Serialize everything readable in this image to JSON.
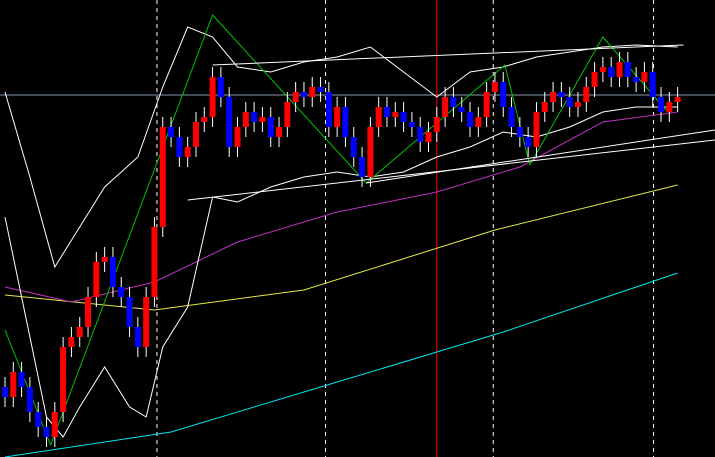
{
  "chart_data": {
    "type": "candlestick",
    "xlim": [
      -0.6,
      85.5
    ],
    "ylim": [
      0,
      457
    ],
    "background": "#000000",
    "up_color": "#ff0000",
    "down_color": "#0000ff",
    "wick_color": "#ffffff",
    "open": [
      70,
      60,
      85,
      70,
      45,
      30,
      20,
      45,
      110,
      120,
      130,
      160,
      195,
      200,
      170,
      160,
      130,
      110,
      160,
      230,
      330,
      320,
      300,
      310,
      335,
      340,
      380,
      360,
      310,
      330,
      345,
      335,
      340,
      320,
      330,
      355,
      365,
      360,
      370,
      365,
      330,
      350,
      320,
      300,
      280,
      330,
      350,
      340,
      345,
      335,
      330,
      315,
      325,
      340,
      360,
      350,
      345,
      330,
      340,
      365,
      375,
      350,
      330,
      320,
      310,
      345,
      355,
      365,
      360,
      350,
      355,
      370,
      385,
      390,
      380,
      395,
      380,
      375,
      385,
      360,
      345,
      355
    ],
    "high": [
      80,
      95,
      95,
      80,
      55,
      40,
      55,
      120,
      130,
      140,
      170,
      205,
      210,
      210,
      180,
      170,
      140,
      170,
      240,
      340,
      340,
      330,
      320,
      345,
      350,
      390,
      390,
      370,
      340,
      355,
      355,
      350,
      350,
      340,
      365,
      375,
      375,
      380,
      380,
      375,
      360,
      360,
      330,
      310,
      340,
      360,
      360,
      355,
      355,
      345,
      340,
      335,
      350,
      370,
      370,
      360,
      355,
      350,
      375,
      385,
      385,
      360,
      340,
      330,
      355,
      365,
      375,
      375,
      370,
      365,
      380,
      395,
      400,
      400,
      405,
      405,
      390,
      395,
      395,
      370,
      365,
      370
    ],
    "low": [
      50,
      50,
      60,
      35,
      20,
      10,
      10,
      35,
      100,
      110,
      120,
      150,
      185,
      160,
      150,
      120,
      100,
      100,
      150,
      220,
      310,
      290,
      290,
      300,
      325,
      330,
      350,
      300,
      300,
      320,
      325,
      325,
      310,
      310,
      320,
      345,
      350,
      350,
      355,
      320,
      320,
      310,
      290,
      270,
      270,
      320,
      330,
      330,
      325,
      320,
      305,
      305,
      315,
      330,
      340,
      335,
      320,
      320,
      330,
      355,
      340,
      320,
      310,
      300,
      300,
      335,
      345,
      350,
      340,
      340,
      345,
      360,
      375,
      370,
      370,
      370,
      365,
      365,
      350,
      335,
      335,
      345
    ],
    "close": [
      60,
      85,
      70,
      45,
      30,
      20,
      45,
      110,
      120,
      130,
      160,
      195,
      200,
      170,
      160,
      130,
      110,
      160,
      230,
      330,
      320,
      300,
      310,
      335,
      340,
      380,
      360,
      310,
      330,
      345,
      335,
      340,
      320,
      330,
      355,
      365,
      360,
      370,
      365,
      330,
      350,
      320,
      300,
      280,
      330,
      350,
      340,
      345,
      335,
      330,
      315,
      325,
      340,
      360,
      350,
      345,
      330,
      340,
      365,
      375,
      350,
      330,
      320,
      310,
      345,
      355,
      365,
      360,
      350,
      355,
      370,
      385,
      390,
      380,
      395,
      380,
      375,
      385,
      360,
      345,
      355,
      360
    ],
    "lines": [
      {
        "color": "#00e5ee",
        "x": [
          0,
          20,
          40,
          60,
          81
        ],
        "values": [
          0,
          25,
          75,
          125,
          184
        ]
      },
      {
        "color": "#e8e84a",
        "x": [
          0,
          18,
          36,
          59,
          81
        ],
        "values": [
          162,
          147,
          167,
          227,
          272
        ]
      },
      {
        "color": "#c030c0",
        "x": [
          0,
          8,
          18,
          28,
          40,
          52,
          62,
          72,
          81
        ],
        "values": [
          170,
          155,
          175,
          215,
          245,
          265,
          290,
          335,
          345
        ]
      },
      {
        "color": "#ffffff",
        "x": [
          0,
          3,
          6,
          9,
          12,
          16,
          19,
          22,
          25,
          28,
          32,
          36,
          40,
          44,
          48,
          52,
          56,
          60,
          64,
          68,
          72,
          76,
          81
        ],
        "values": [
          365,
          280,
          190,
          230,
          270,
          300,
          370,
          430,
          420,
          390,
          385,
          395,
          400,
          410,
          385,
          360,
          385,
          390,
          400,
          405,
          410,
          412,
          410
        ]
      },
      {
        "color": "#ffffff",
        "x": [
          0,
          3,
          5,
          7,
          9,
          12,
          15,
          17,
          19,
          22,
          25,
          28,
          32,
          36,
          40,
          44,
          48,
          52,
          56,
          60,
          64,
          68,
          72,
          76,
          81
        ],
        "values": [
          240,
          120,
          40,
          20,
          50,
          90,
          50,
          40,
          110,
          150,
          260,
          255,
          270,
          280,
          285,
          280,
          285,
          300,
          310,
          325,
          320,
          330,
          345,
          350,
          350
        ]
      },
      {
        "color": "#00c000",
        "x": [
          0,
          5.5,
          25,
          43.5,
          60.2,
          63.2,
          72,
          79.8
        ],
        "values": [
          127,
          12,
          442,
          274,
          392,
          292,
          420,
          345
        ]
      },
      {
        "color": "#ffffff",
        "x": [
          25,
          81.7
        ],
        "values": [
          392,
          412
        ]
      },
      {
        "color": "#ffffff",
        "x": [
          22,
          85.5
        ],
        "values": [
          257,
          317
        ]
      },
      {
        "color": "#ffffff",
        "x": [
          43.5,
          85.5
        ],
        "values": [
          274,
          327
        ]
      }
    ],
    "vlines": [
      18.3,
      38.6,
      58.8,
      78.1
    ],
    "vline_color": "#ffffff",
    "marker_line": 52.0,
    "marker_color": "#ff0000",
    "hline": 362,
    "hline_color": "#8899aa"
  }
}
